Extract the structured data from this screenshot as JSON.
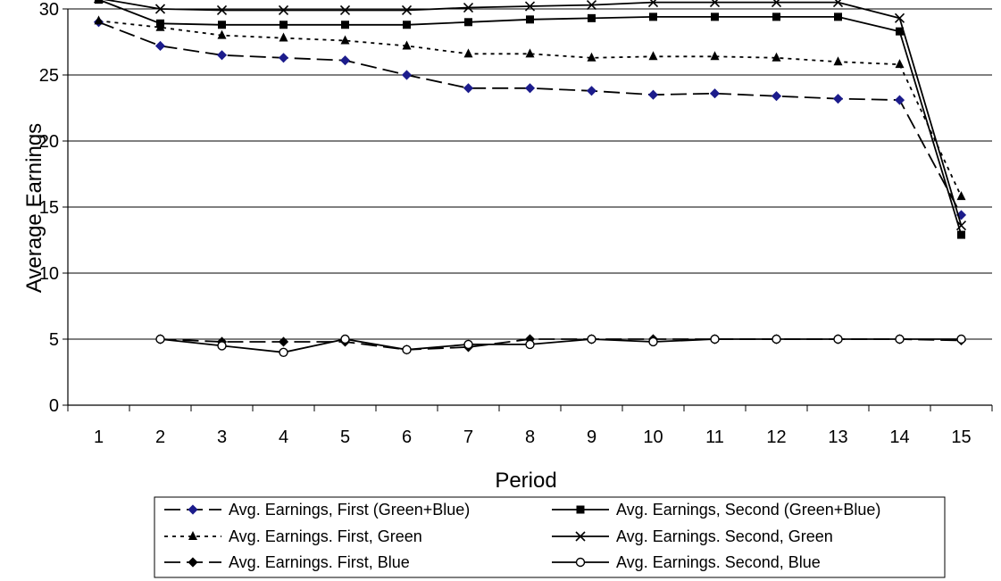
{
  "chart_data": {
    "type": "line",
    "xlabel": "Period",
    "ylabel": "Average Earnings",
    "ylim": [
      0,
      30
    ],
    "yticks": [
      0,
      5,
      10,
      15,
      20,
      25,
      30
    ],
    "categories": [
      "1",
      "2",
      "3",
      "4",
      "5",
      "6",
      "7",
      "8",
      "9",
      "10",
      "11",
      "12",
      "13",
      "14",
      "15"
    ],
    "grid": "horizontal",
    "legend_position": "bottom",
    "series": [
      {
        "name": "Avg. Earnings, First (Green+Blue)",
        "line": "dashed",
        "marker": "diamond",
        "color": "#000000",
        "marker_color": "#1c1c8c",
        "x": [
          1,
          2,
          3,
          4,
          5,
          6,
          7,
          8,
          9,
          10,
          11,
          12,
          13,
          14,
          15
        ],
        "values": [
          29.0,
          27.2,
          26.5,
          26.3,
          26.1,
          25.0,
          24.0,
          24.0,
          23.8,
          23.5,
          23.6,
          23.4,
          23.2,
          23.1,
          14.4
        ]
      },
      {
        "name": "Avg. Earnings, Second (Green+Blue)",
        "line": "solid",
        "marker": "square",
        "color": "#000000",
        "marker_color": "#000000",
        "x": [
          1,
          2,
          3,
          4,
          5,
          6,
          7,
          8,
          9,
          10,
          11,
          12,
          13,
          14,
          15
        ],
        "values": [
          30.7,
          28.9,
          28.8,
          28.8,
          28.8,
          28.8,
          29.0,
          29.2,
          29.3,
          29.4,
          29.4,
          29.4,
          29.4,
          28.3,
          12.9
        ]
      },
      {
        "name": "Avg. Earnings. First, Green",
        "line": "dotted",
        "marker": "triangle",
        "color": "#000000",
        "marker_color": "#000000",
        "x": [
          1,
          2,
          3,
          4,
          5,
          6,
          7,
          8,
          9,
          10,
          11,
          12,
          13,
          14,
          15
        ],
        "values": [
          29.1,
          28.6,
          28.0,
          27.8,
          27.6,
          27.2,
          26.6,
          26.6,
          26.3,
          26.4,
          26.4,
          26.3,
          26.0,
          25.8,
          15.8
        ]
      },
      {
        "name": "Avg. Earnings. Second, Green",
        "line": "solid",
        "marker": "x",
        "color": "#000000",
        "marker_color": "#000000",
        "x": [
          1,
          2,
          3,
          4,
          5,
          6,
          7,
          8,
          9,
          10,
          11,
          12,
          13,
          14,
          15
        ],
        "values": [
          30.8,
          30.0,
          29.9,
          29.9,
          29.9,
          29.9,
          30.1,
          30.2,
          30.3,
          30.5,
          30.5,
          30.5,
          30.5,
          29.3,
          13.6
        ]
      },
      {
        "name": "Avg. Earnings. First, Blue",
        "line": "dashed",
        "marker": "diamond",
        "color": "#000000",
        "marker_color": "#000000",
        "x": [
          2,
          3,
          4,
          5,
          6,
          7,
          8,
          9,
          10,
          11,
          12,
          13,
          14,
          15
        ],
        "values": [
          5.0,
          4.8,
          4.8,
          4.8,
          4.2,
          4.4,
          5.0,
          5.0,
          5.0,
          5.0,
          5.0,
          5.0,
          5.0,
          4.9
        ]
      },
      {
        "name": "Avg. Earnings. Second, Blue",
        "line": "solid",
        "marker": "circle",
        "color": "#000000",
        "marker_color": "#ffffff",
        "x": [
          2,
          3,
          4,
          5,
          6,
          7,
          8,
          9,
          10,
          11,
          12,
          13,
          14,
          15
        ],
        "values": [
          5.0,
          4.5,
          4.0,
          5.0,
          4.2,
          4.6,
          4.6,
          5.0,
          4.8,
          5.0,
          5.0,
          5.0,
          5.0,
          5.0
        ]
      }
    ]
  }
}
